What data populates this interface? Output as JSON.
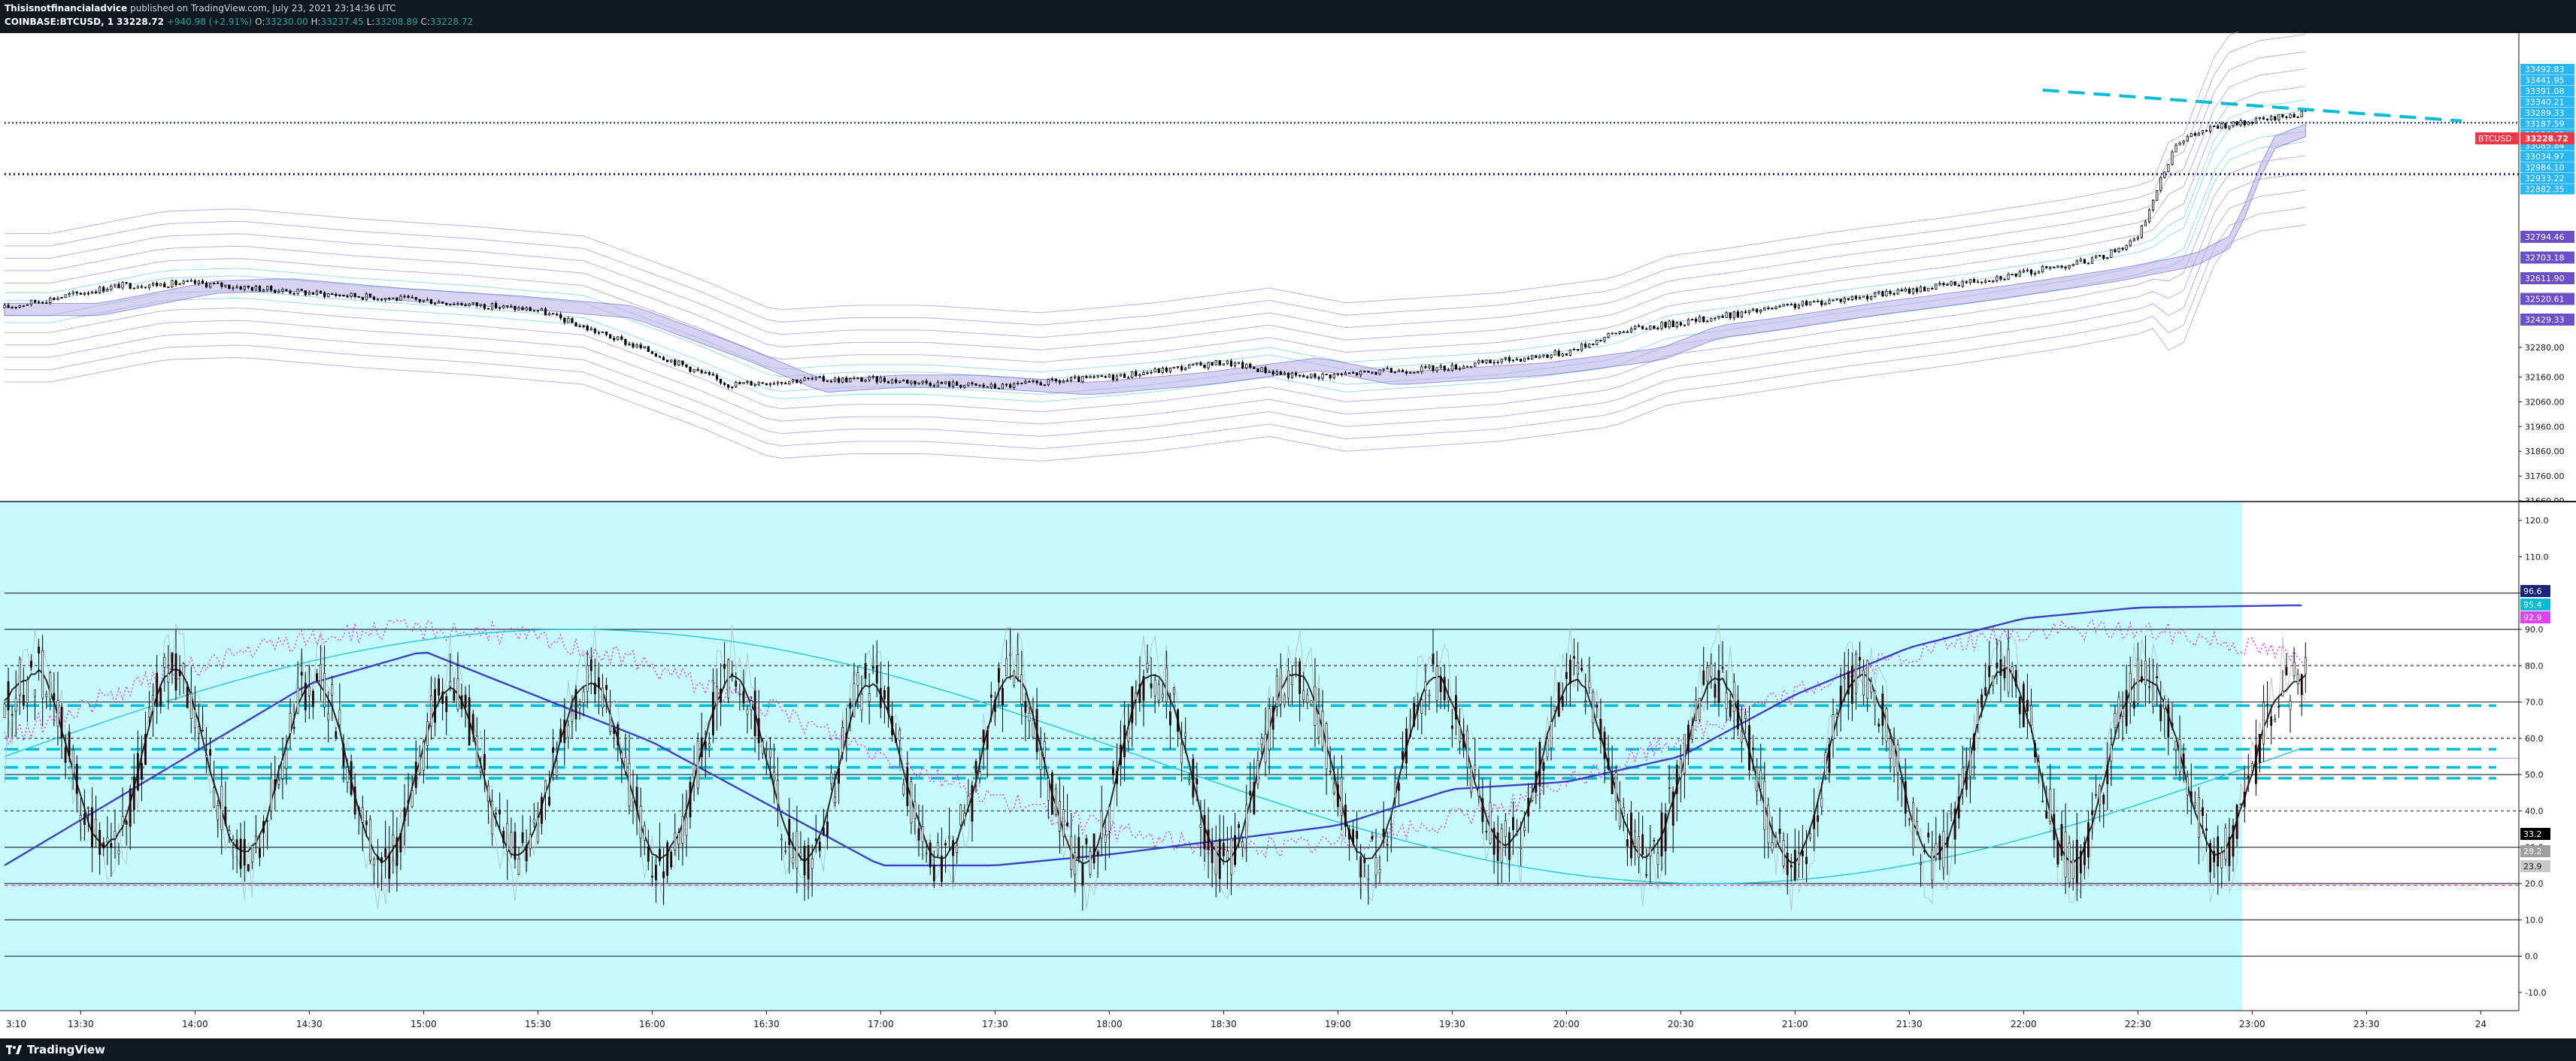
{
  "header": {
    "author": "Thisisnotfinancialadvice",
    "published_line": " published on TradingView.com, July 23, 2021 23:14:36 UTC",
    "symbol": "COINBASE:BTCUSD, 1",
    "last": "33228.72",
    "change": "+940.98 (+2.91%)",
    "o_label": "O:",
    "o_value": "33230.00",
    "h_label": "H:",
    "h_value": "33237.45",
    "l_label": "L:",
    "l_value": "33208.89",
    "c_label": "C:",
    "c_value": "33228.72"
  },
  "footer": {
    "logo_text": "TradingView"
  },
  "colors": {
    "bg": "#131722",
    "price_bg": "#ffffff",
    "osc_bg": "#c5fbfd",
    "candle": "#000000",
    "accent_cyan": "#00bcd4",
    "ma_blue": "#3f3fc6",
    "purple_band": "#8e7cc3",
    "magenta": "#e040fb",
    "red_label": "#f23645"
  },
  "chart_data": [
    {
      "type": "candlestick",
      "name": "COINBASE:BTCUSD, 1",
      "x": [
        "13:30",
        "14:00",
        "14:30",
        "15:00",
        "15:30",
        "16:00",
        "16:30",
        "17:00",
        "17:30",
        "18:00",
        "18:30",
        "19:00",
        "19:30",
        "20:00",
        "20:30",
        "21:00",
        "21:30",
        "22:00",
        "22:30",
        "23:00",
        "23:30",
        "24"
      ],
      "ylim": [
        31660,
        33550
      ],
      "y_ticks": [
        31660.0,
        31760.0,
        31860.0,
        31960.0,
        32060.0,
        32160.0,
        32280.0
      ],
      "trend_anchors": [
        {
          "t": "13:10",
          "p": 32440
        },
        {
          "t": "13:40",
          "p": 32530
        },
        {
          "t": "14:00",
          "p": 32540
        },
        {
          "t": "14:30",
          "p": 32500
        },
        {
          "t": "15:00",
          "p": 32470
        },
        {
          "t": "15:30",
          "p": 32430
        },
        {
          "t": "16:00",
          "p": 32260
        },
        {
          "t": "16:20",
          "p": 32130
        },
        {
          "t": "16:40",
          "p": 32150
        },
        {
          "t": "17:00",
          "p": 32150
        },
        {
          "t": "17:30",
          "p": 32120
        },
        {
          "t": "18:00",
          "p": 32160
        },
        {
          "t": "18:30",
          "p": 32220
        },
        {
          "t": "18:50",
          "p": 32160
        },
        {
          "t": "19:30",
          "p": 32200
        },
        {
          "t": "20:00",
          "p": 32260
        },
        {
          "t": "20:15",
          "p": 32350
        },
        {
          "t": "20:30",
          "p": 32380
        },
        {
          "t": "21:00",
          "p": 32450
        },
        {
          "t": "21:30",
          "p": 32510
        },
        {
          "t": "22:00",
          "p": 32580
        },
        {
          "t": "22:20",
          "p": 32640
        },
        {
          "t": "22:30",
          "p": 32720
        },
        {
          "t": "22:40",
          "p": 33110
        },
        {
          "t": "22:50",
          "p": 33170
        },
        {
          "t": "23:00",
          "p": 33190
        },
        {
          "t": "23:14",
          "p": 33228.72
        }
      ],
      "levels": {
        "upper_dotted": 33187.59,
        "lower_dotted": 32980,
        "resistance_dashed": [
          {
            "t": "22:05",
            "p": 33320
          },
          {
            "t": "23:55",
            "p": 33195
          }
        ]
      },
      "price_label": {
        "text": "BTCUSD",
        "value": "33228.72"
      },
      "right_labels_cyan": [
        "33492.83",
        "33441.95",
        "33391.08",
        "33340.21",
        "33289.33",
        "33187.59",
        "33136.72",
        "33085.84",
        "33034.97",
        "32984.10",
        "32933.22",
        "32882.35"
      ],
      "right_labels_purple": [
        "32794.46",
        "32703.18",
        "32611.90",
        "32520.61",
        "32429.33"
      ]
    },
    {
      "type": "line",
      "name": "oscillator",
      "ylim": [
        -15,
        125
      ],
      "y_ticks": [
        -10.0,
        0.0,
        10.0,
        20.0,
        30.0,
        40.0,
        50.0,
        60.0,
        70.0,
        80.0,
        90.0,
        100.0,
        110.0,
        120.0
      ],
      "horizontal_lines": [
        0,
        10,
        20,
        30,
        40,
        50,
        60,
        70,
        80,
        90,
        100
      ],
      "dashed_cyan_levels": [
        69,
        57,
        52,
        49
      ],
      "value_labels": [
        {
          "value": "96.6",
          "color": "#1a237e"
        },
        {
          "value": "95.4",
          "color": "#00bcd4"
        },
        {
          "value": "92.9",
          "color": "#e040fb"
        },
        {
          "value": "33.2",
          "color": "#000000"
        },
        {
          "value": "28.2",
          "color": "#9e9e9e"
        },
        {
          "value": "23.9",
          "color": "#c8c8c8"
        }
      ],
      "slow_ma_anchors": [
        {
          "t": "13:10",
          "v": 25
        },
        {
          "t": "14:30",
          "v": 75
        },
        {
          "t": "15:00",
          "v": 84
        },
        {
          "t": "16:00",
          "v": 59
        },
        {
          "t": "17:00",
          "v": 25
        },
        {
          "t": "17:30",
          "v": 25
        },
        {
          "t": "18:00",
          "v": 28
        },
        {
          "t": "19:00",
          "v": 36
        },
        {
          "t": "19:30",
          "v": 46
        },
        {
          "t": "20:00",
          "v": 48
        },
        {
          "t": "20:30",
          "v": 55
        },
        {
          "t": "21:00",
          "v": 72
        },
        {
          "t": "21:30",
          "v": 85
        },
        {
          "t": "22:00",
          "v": 93
        },
        {
          "t": "22:30",
          "v": 96
        },
        {
          "t": "23:10",
          "v": 96.6
        }
      ]
    }
  ]
}
